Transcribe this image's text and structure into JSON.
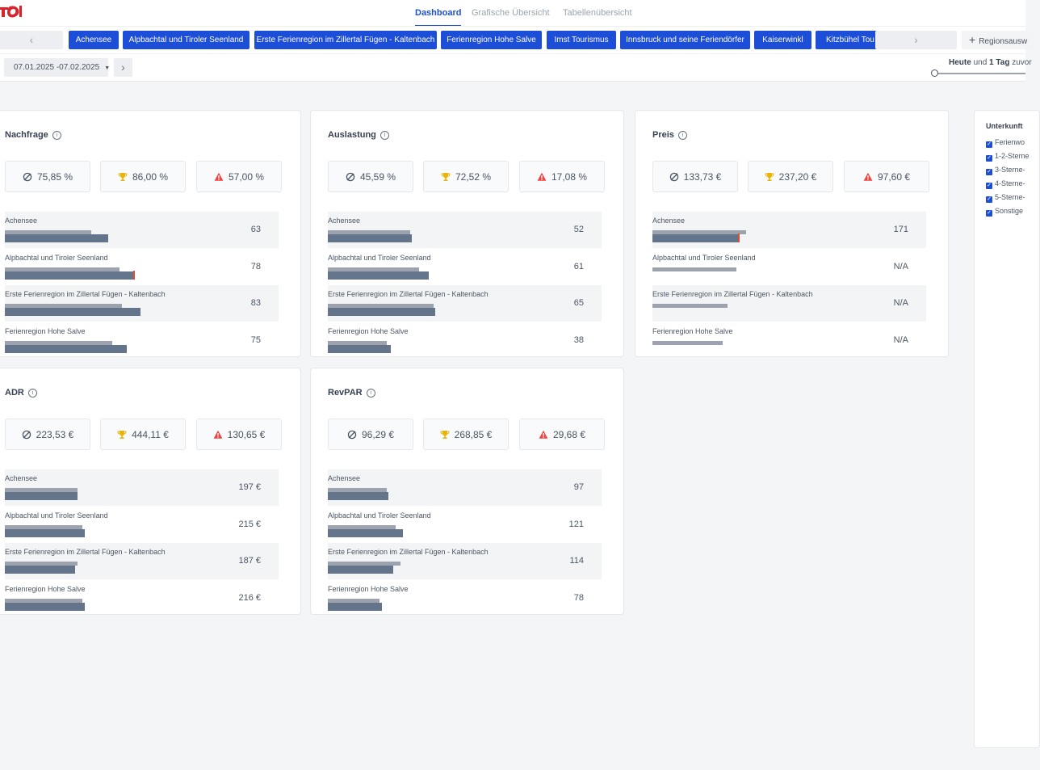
{
  "nav": {
    "tabs": [
      {
        "label": "Dashboard",
        "active": true
      },
      {
        "label": "Grafische Übersicht",
        "active": false
      },
      {
        "label": "Tabellenübersicht",
        "active": false
      }
    ]
  },
  "regions": {
    "chips": [
      "Achensee",
      "Alpbachtal und Tiroler Seenland",
      "Erste Ferienregion im Zillertal Fügen - Kaltenbach",
      "Ferienregion Hohe Salve",
      "Imst Tourismus",
      "Innsbruck und seine Feriendörfer",
      "Kaiserwinkl",
      "Kitzbühel Tou"
    ],
    "add_label": "Regionsausw",
    "prev_icon": "chevron-left-icon",
    "next_icon": "chevron-right-icon",
    "accent_color": "#1d4ed8"
  },
  "date_range": "07.01.2025 -07.02.2025",
  "comparison": {
    "prefix": "Heute",
    "middle": "und",
    "offset": "1 Tag",
    "suffix": "zuvor"
  },
  "cards": [
    {
      "title": "Nachfrage",
      "stats": {
        "avg": "75,85 %",
        "max": "86,00 %",
        "min": "57,00 %"
      },
      "rows": [
        {
          "label": "Achensee",
          "value": "63",
          "ref": 0.37,
          "main": 0.44,
          "marker": false
        },
        {
          "label": "Alpbachtal und Tiroler Seenland",
          "value": "78",
          "ref": 0.49,
          "main": 0.55,
          "marker": true
        },
        {
          "label": "Erste Ferienregion im Zillertal Fügen - Kaltenbach",
          "value": "83",
          "ref": 0.5,
          "main": 0.58,
          "marker": false
        },
        {
          "label": "Ferienregion Hohe Salve",
          "value": "75",
          "ref": 0.46,
          "main": 0.52,
          "marker": false
        }
      ]
    },
    {
      "title": "Auslastung",
      "stats": {
        "avg": "45,59 %",
        "max": "72,52 %",
        "min": "17,08 %"
      },
      "rows": [
        {
          "label": "Achensee",
          "value": "52",
          "ref": 0.35,
          "main": 0.36,
          "marker": false
        },
        {
          "label": "Alpbachtal und Tiroler Seenland",
          "value": "61",
          "ref": 0.39,
          "main": 0.43,
          "marker": false
        },
        {
          "label": "Erste Ferienregion im Zillertal Fügen - Kaltenbach",
          "value": "65",
          "ref": 0.45,
          "main": 0.46,
          "marker": false
        },
        {
          "label": "Ferienregion Hohe Salve",
          "value": "38",
          "ref": 0.25,
          "main": 0.27,
          "marker": false
        }
      ]
    },
    {
      "title": "Preis",
      "stats": {
        "avg": "133,73 €",
        "max": "237,20 €",
        "min": "97,60 €"
      },
      "rows": [
        {
          "label": "Achensee",
          "value": "171",
          "ref": 0.4,
          "main": 0.37,
          "marker": true
        },
        {
          "label": "Alpbachtal und Tiroler Seenland",
          "value": "N/A",
          "ref": 0.36,
          "main": 0,
          "marker": false
        },
        {
          "label": "Erste Ferienregion im Zillertal Fügen - Kaltenbach",
          "value": "N/A",
          "ref": 0.32,
          "main": 0,
          "marker": false
        },
        {
          "label": "Ferienregion Hohe Salve",
          "value": "N/A",
          "ref": 0.3,
          "main": 0,
          "marker": false
        }
      ]
    },
    {
      "title": "ADR",
      "stats": {
        "avg": "223,53 €",
        "max": "444,11 €",
        "min": "130,65 €"
      },
      "rows": [
        {
          "label": "Achensee",
          "value": "197 €",
          "ref": 0.31,
          "main": 0.31,
          "marker": false
        },
        {
          "label": "Alpbachtal und Tiroler Seenland",
          "value": "215 €",
          "ref": 0.33,
          "main": 0.34,
          "marker": false
        },
        {
          "label": "Erste Ferienregion im Zillertal Fügen - Kaltenbach",
          "value": "187 €",
          "ref": 0.31,
          "main": 0.3,
          "marker": false
        },
        {
          "label": "Ferienregion Hohe Salve",
          "value": "216 €",
          "ref": 0.33,
          "main": 0.34,
          "marker": false
        }
      ]
    },
    {
      "title": "RevPAR",
      "stats": {
        "avg": "96,29 €",
        "max": "268,85 €",
        "min": "29,68 €"
      },
      "rows": [
        {
          "label": "Achensee",
          "value": "97",
          "ref": 0.25,
          "main": 0.26,
          "marker": false
        },
        {
          "label": "Alpbachtal und Tiroler Seenland",
          "value": "121",
          "ref": 0.29,
          "main": 0.32,
          "marker": false
        },
        {
          "label": "Erste Ferienregion im Zillertal Fügen - Kaltenbach",
          "value": "114",
          "ref": 0.31,
          "main": 0.28,
          "marker": false
        },
        {
          "label": "Ferienregion Hohe Salve",
          "value": "78",
          "ref": 0.22,
          "main": 0.23,
          "marker": false
        }
      ]
    }
  ],
  "side": {
    "title": "Unterkunft",
    "items": [
      "Ferienwo",
      "1-2-Sterne",
      "3-Sterne-",
      "4-Sterne-",
      "5-Sterne-",
      "Sonstige"
    ]
  },
  "colors": {
    "bar_main": "#64748b",
    "bar_ref": "#9ca3af",
    "marker": "#e04b2c",
    "trophy": "#eab308",
    "warning": "#ef4444"
  },
  "icons": {
    "avg": "average-icon",
    "max": "trophy-icon",
    "min": "warning-icon",
    "info": "info-icon"
  }
}
